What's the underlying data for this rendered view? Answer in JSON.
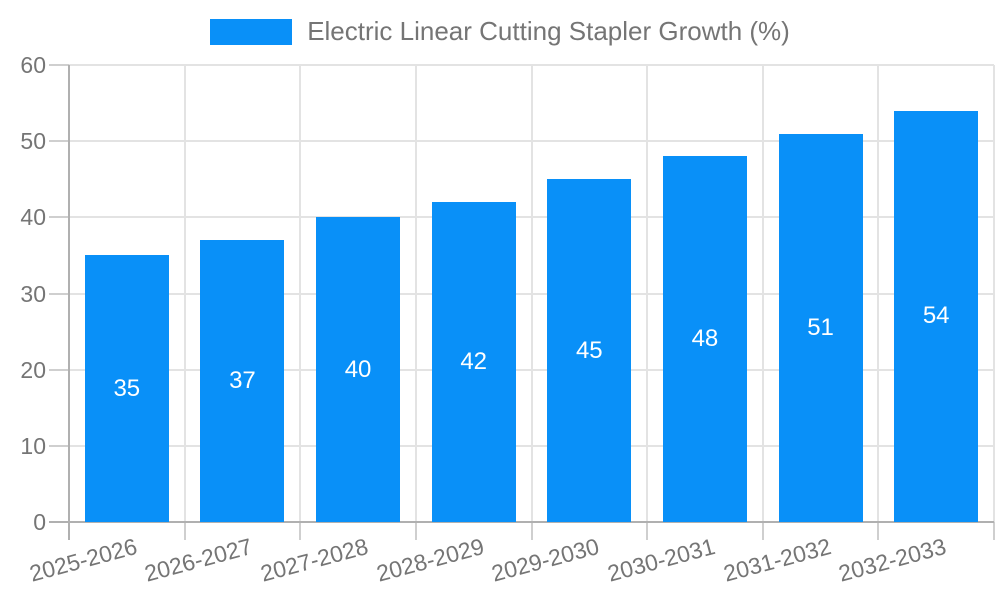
{
  "chart_data": {
    "type": "bar",
    "title": "Electric Linear Cutting Stapler Growth (%)",
    "categories": [
      "2025-2026",
      "2026-2027",
      "2027-2028",
      "2028-2029",
      "2029-2030",
      "2030-2031",
      "2031-2032",
      "2032-2033"
    ],
    "values": [
      35,
      37,
      40,
      42,
      45,
      48,
      51,
      54
    ],
    "yticks": [
      0,
      10,
      20,
      30,
      40,
      50,
      60
    ],
    "ylim": [
      0,
      60
    ],
    "xlabel": "",
    "ylabel": "",
    "grid": true,
    "legend_position": "top-center",
    "bar_color": "#0990F8",
    "bar_label_color": "#ffffff",
    "axis_text_color": "#757575",
    "grid_color": "#e3e3e3",
    "axis_line_color": "#b0b0b0"
  }
}
